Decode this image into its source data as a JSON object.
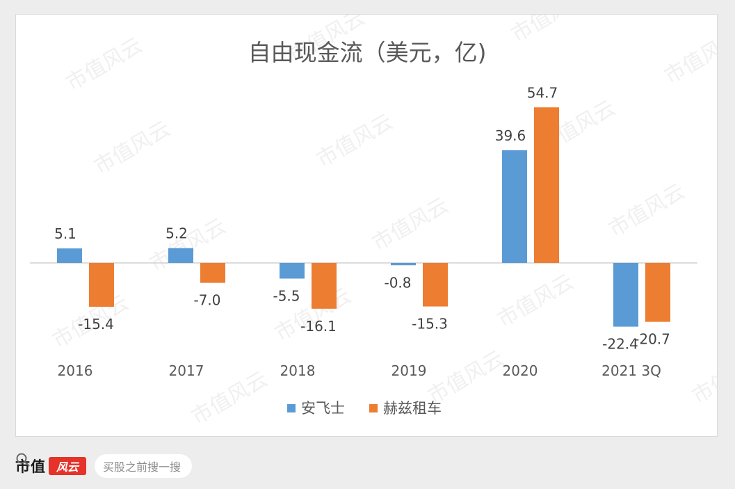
{
  "chart_data": {
    "type": "bar",
    "title": "自由现金流（美元，亿)",
    "categories": [
      "2016",
      "2017",
      "2018",
      "2019",
      "2020",
      "2021 3Q"
    ],
    "series": [
      {
        "name": "安飞士",
        "color": "#5b9bd5",
        "values": [
          5.1,
          5.2,
          -5.5,
          -0.8,
          39.6,
          -22.4
        ],
        "labels": [
          "5.1",
          "5.2",
          "-5.5",
          "-0.8",
          "39.6",
          "-22.4"
        ]
      },
      {
        "name": "赫兹租车",
        "color": "#ed7d31",
        "values": [
          -15.4,
          -7.0,
          -16.1,
          -15.3,
          54.7,
          -20.7
        ],
        "labels": [
          "-15.4",
          "-7.0",
          "-16.1",
          "-15.3",
          "54.7",
          "-20.7"
        ]
      }
    ],
    "ylim": [
      -25,
      57
    ],
    "grid": false,
    "legend_position": "bottom"
  },
  "watermark": "市值风云",
  "footer": {
    "brand": "市值",
    "logo_text": "风云",
    "search_placeholder": "买股之前搜一搜",
    "search_icon": "search-icon"
  }
}
